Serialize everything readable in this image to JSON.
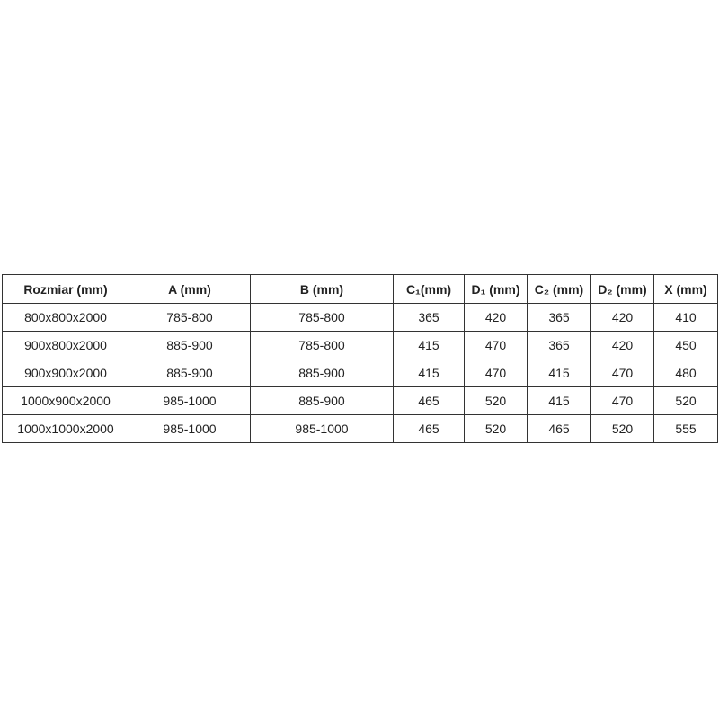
{
  "table": {
    "headers": [
      "Rozmiar (mm)",
      "A (mm)",
      "B (mm)",
      "C₁(mm)",
      "D₁ (mm)",
      "C₂ (mm)",
      "D₂ (mm)",
      "X (mm)"
    ],
    "rows": [
      [
        "800x800x2000",
        "785-800",
        "785-800",
        "365",
        "420",
        "365",
        "420",
        "410"
      ],
      [
        "900x800x2000",
        "885-900",
        "785-800",
        "415",
        "470",
        "365",
        "420",
        "450"
      ],
      [
        "900x900x2000",
        "885-900",
        "885-900",
        "415",
        "470",
        "415",
        "470",
        "480"
      ],
      [
        "1000x900x2000",
        "985-1000",
        "885-900",
        "465",
        "520",
        "415",
        "470",
        "520"
      ],
      [
        "1000x1000x2000",
        "985-1000",
        "985-1000",
        "465",
        "520",
        "465",
        "520",
        "555"
      ]
    ]
  }
}
